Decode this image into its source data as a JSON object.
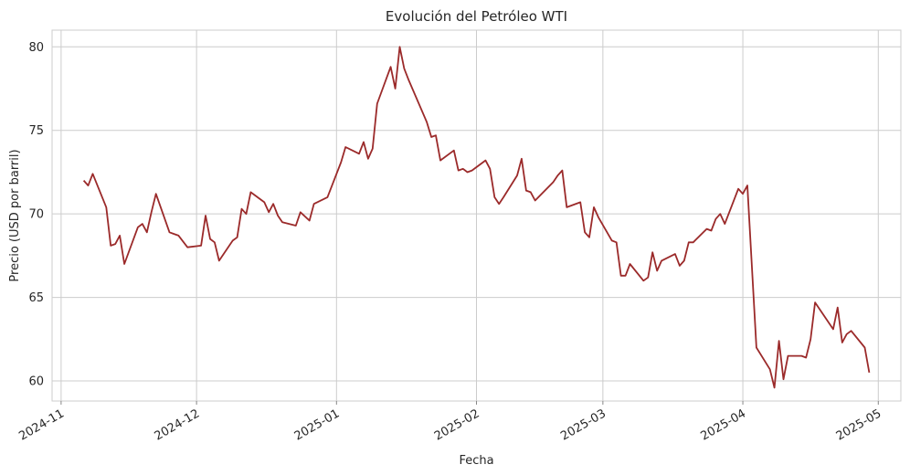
{
  "chart_data": {
    "type": "line",
    "title": "Evolución del Petróleo WTI",
    "xlabel": "Fecha",
    "ylabel": "Precio (USD por barril)",
    "ylim": [
      58.8,
      81.0
    ],
    "xlim": [
      "2024-10-30",
      "2025-05-06"
    ],
    "grid": true,
    "color": "#9b2a2a",
    "x_ticks": [
      "2024-11",
      "2024-12",
      "2025-01",
      "2025-02",
      "2025-03",
      "2025-04",
      "2025-05"
    ],
    "y_ticks": [
      60,
      65,
      70,
      75,
      80
    ],
    "series": [
      {
        "x": [
          "2024-11-06",
          "2024-11-07",
          "2024-11-08",
          "2024-11-11",
          "2024-11-12",
          "2024-11-13",
          "2024-11-14",
          "2024-11-15",
          "2024-11-18",
          "2024-11-19",
          "2024-11-20",
          "2024-11-21",
          "2024-11-22",
          "2024-11-25",
          "2024-11-26",
          "2024-11-27",
          "2024-11-29",
          "2024-12-02",
          "2024-12-03",
          "2024-12-04",
          "2024-12-05",
          "2024-12-06",
          "2024-12-09",
          "2024-12-10",
          "2024-12-11",
          "2024-12-12",
          "2024-12-13",
          "2024-12-16",
          "2024-12-17",
          "2024-12-18",
          "2024-12-19",
          "2024-12-20",
          "2024-12-23",
          "2024-12-24",
          "2024-12-26",
          "2024-12-27",
          "2024-12-30",
          "2024-12-31",
          "2025-01-02",
          "2025-01-03",
          "2025-01-06",
          "2025-01-07",
          "2025-01-08",
          "2025-01-09",
          "2025-01-10",
          "2025-01-13",
          "2025-01-14",
          "2025-01-15",
          "2025-01-16",
          "2025-01-17",
          "2025-01-21",
          "2025-01-22",
          "2025-01-23",
          "2025-01-24",
          "2025-01-27",
          "2025-01-28",
          "2025-01-29",
          "2025-01-30",
          "2025-01-31",
          "2025-02-03",
          "2025-02-04",
          "2025-02-05",
          "2025-02-06",
          "2025-02-07",
          "2025-02-10",
          "2025-02-11",
          "2025-02-12",
          "2025-02-13",
          "2025-02-14",
          "2025-02-18",
          "2025-02-19",
          "2025-02-20",
          "2025-02-21",
          "2025-02-24",
          "2025-02-25",
          "2025-02-26",
          "2025-02-27",
          "2025-02-28",
          "2025-03-03",
          "2025-03-04",
          "2025-03-05",
          "2025-03-06",
          "2025-03-07",
          "2025-03-10",
          "2025-03-11",
          "2025-03-12",
          "2025-03-13",
          "2025-03-14",
          "2025-03-17",
          "2025-03-18",
          "2025-03-19",
          "2025-03-20",
          "2025-03-21",
          "2025-03-24",
          "2025-03-25",
          "2025-03-26",
          "2025-03-27",
          "2025-03-28",
          "2025-03-31",
          "2025-04-01",
          "2025-04-02",
          "2025-04-03",
          "2025-04-04",
          "2025-04-07",
          "2025-04-08",
          "2025-04-09",
          "2025-04-10",
          "2025-04-11",
          "2025-04-14",
          "2025-04-15",
          "2025-04-16",
          "2025-04-17",
          "2025-04-21",
          "2025-04-22",
          "2025-04-23",
          "2025-04-24",
          "2025-04-25",
          "2025-04-28",
          "2025-04-29"
        ],
        "y": [
          72.0,
          71.7,
          72.4,
          70.4,
          68.1,
          68.2,
          68.7,
          67.0,
          69.2,
          69.4,
          68.9,
          70.1,
          71.2,
          68.9,
          68.8,
          68.7,
          68.0,
          68.1,
          69.9,
          68.5,
          68.3,
          67.2,
          68.4,
          68.6,
          70.3,
          70.0,
          71.3,
          70.7,
          70.1,
          70.6,
          69.9,
          69.5,
          69.3,
          70.1,
          69.6,
          70.6,
          71.0,
          71.7,
          73.1,
          74.0,
          73.6,
          74.3,
          73.3,
          73.9,
          76.6,
          78.8,
          77.5,
          80.0,
          78.7,
          78.0,
          75.5,
          74.6,
          74.7,
          73.2,
          73.8,
          72.6,
          72.7,
          72.5,
          72.6,
          73.2,
          72.7,
          71.0,
          70.6,
          71.0,
          72.3,
          73.3,
          71.4,
          71.3,
          70.8,
          71.9,
          72.3,
          72.6,
          70.4,
          70.7,
          68.9,
          68.6,
          70.4,
          69.8,
          68.4,
          68.3,
          66.3,
          66.3,
          67.0,
          66.0,
          66.2,
          67.7,
          66.6,
          67.2,
          67.6,
          66.9,
          67.2,
          68.3,
          68.3,
          69.1,
          69.0,
          69.7,
          70.0,
          69.4,
          71.5,
          71.2,
          71.7,
          66.9,
          62.0,
          60.7,
          59.6,
          62.4,
          60.1,
          61.5,
          61.5,
          61.4,
          62.5,
          64.7,
          63.1,
          64.4,
          62.3,
          62.8,
          63.0,
          62.0,
          60.5
        ]
      }
    ]
  }
}
